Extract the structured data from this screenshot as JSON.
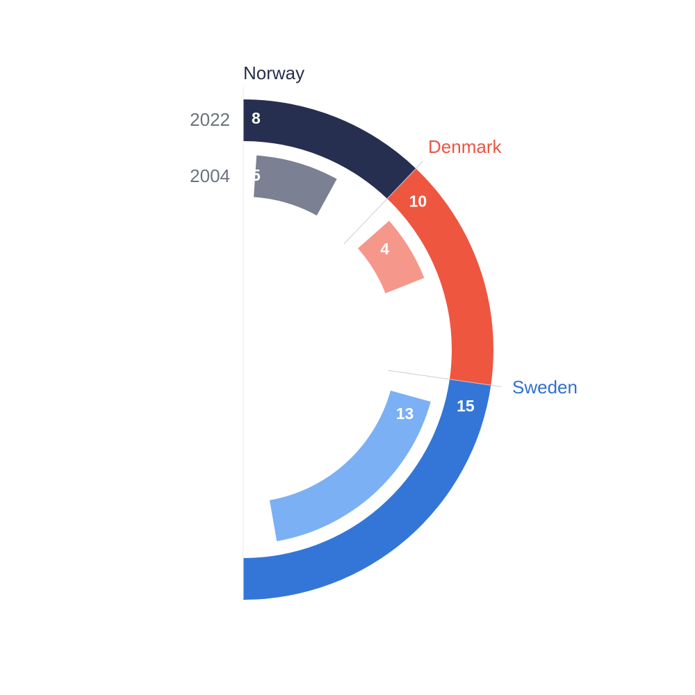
{
  "chart_data": {
    "type": "radial-bar",
    "series": [
      {
        "name": "2022",
        "values": [
          8,
          10,
          15
        ]
      },
      {
        "name": "2004",
        "values": [
          5,
          4,
          13
        ]
      }
    ],
    "categories": [
      "Norway",
      "Denmark",
      "Sweden"
    ],
    "colors": {
      "Norway": {
        "2022": "#262f50",
        "2004": "#7b8192",
        "label": "#262f50"
      },
      "Denmark": {
        "2022": "#ee5640",
        "2004": "#f5978b",
        "label": "#e95543"
      },
      "Sweden": {
        "2022": "#3476d8",
        "2004": "#7bb0f4",
        "label": "#2f70cf"
      }
    },
    "title": "",
    "xlabel": "",
    "ylabel": ""
  }
}
